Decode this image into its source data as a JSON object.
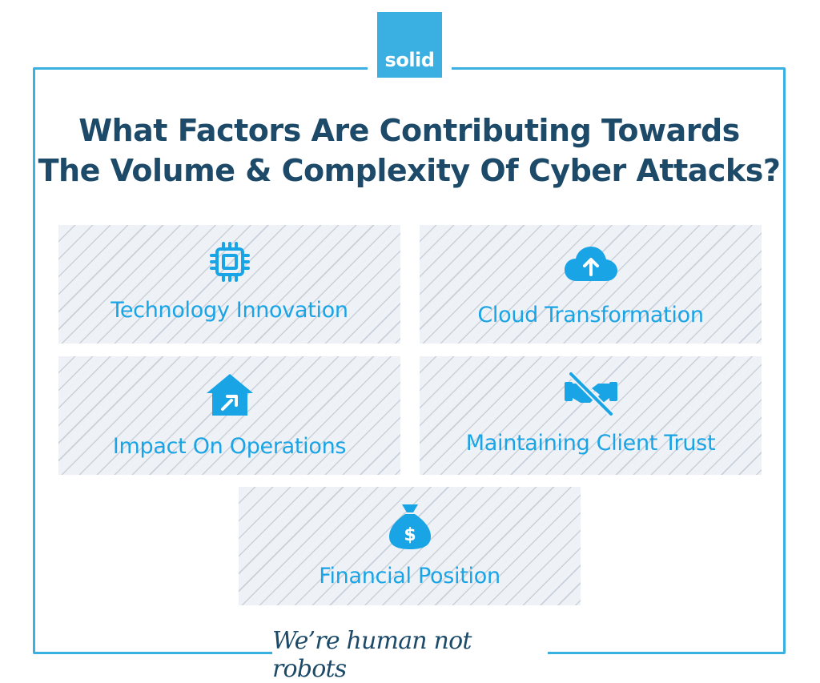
{
  "brand": {
    "logo_text": "solid",
    "accent_color": "#3ab0e2"
  },
  "header": {
    "title_line1": "What Factors Are Contributing Towards",
    "title_line2": "The Volume & Complexity Of Cyber Attacks?"
  },
  "factors": [
    {
      "label": "Technology Innovation",
      "icon": "cpu-chip-icon"
    },
    {
      "label": "Cloud Transformation",
      "icon": "cloud-upload-icon"
    },
    {
      "label": "Impact On Operations",
      "icon": "house-repair-icon"
    },
    {
      "label": "Maintaining Client Trust",
      "icon": "broken-handshake-icon"
    },
    {
      "label": "Financial Position",
      "icon": "money-bag-icon"
    }
  ],
  "footer": {
    "tagline": "We’re human not robots"
  },
  "colors": {
    "title": "#1c4a68",
    "label": "#19a4e6",
    "card_bg": "#eef1f5",
    "stripe": "#c9d1db"
  }
}
